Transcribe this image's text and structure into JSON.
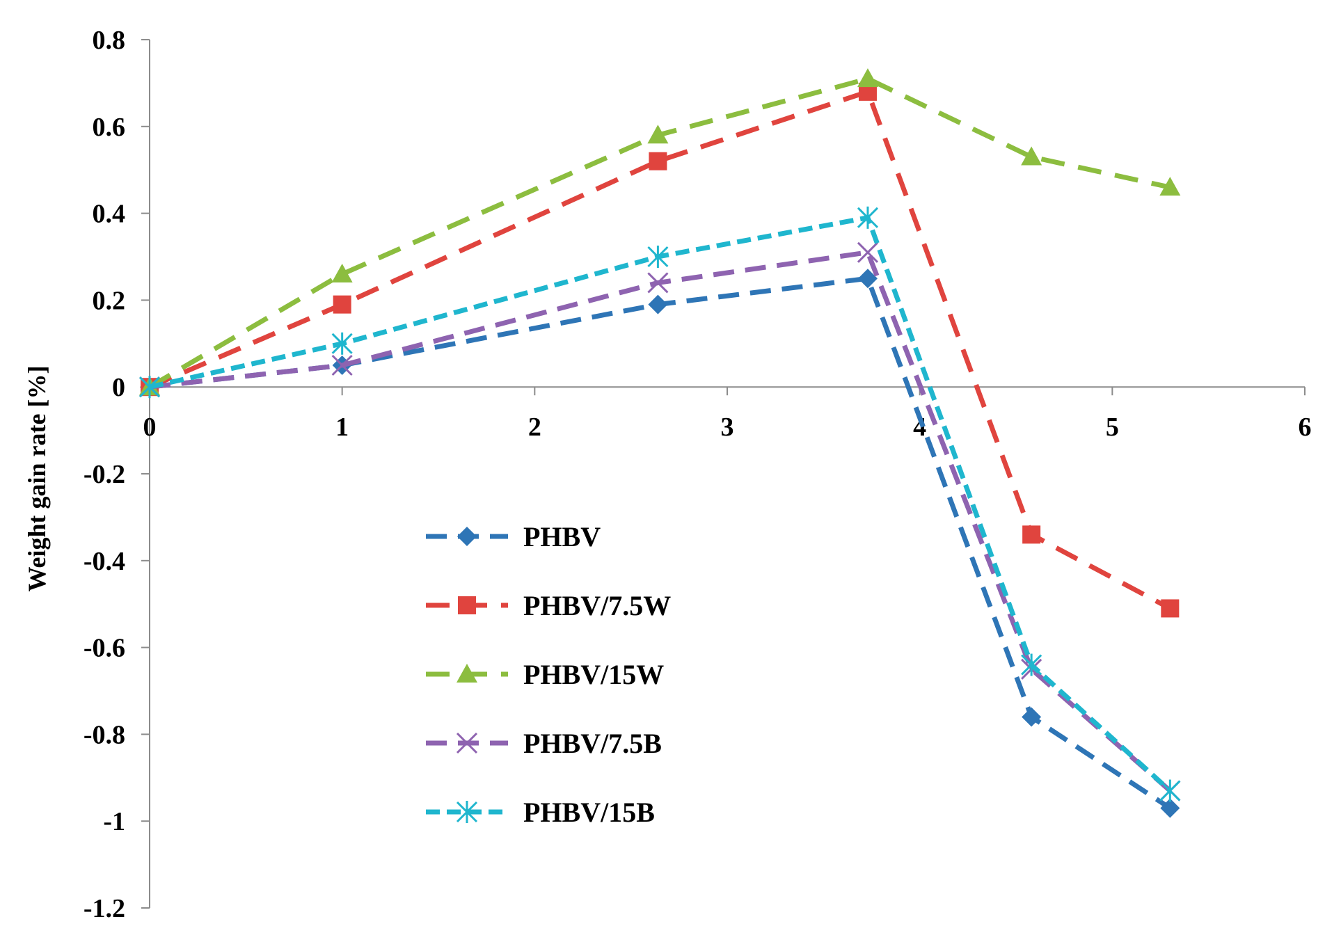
{
  "chart_data": {
    "type": "line",
    "title": "",
    "xlabel": "",
    "ylabel": "Weight gain rate [%]",
    "xlim": [
      0,
      6
    ],
    "ylim": [
      -1.2,
      0.8
    ],
    "x_ticks": [
      0,
      1,
      2,
      3,
      4,
      5,
      6
    ],
    "x_tick_labels": [
      "0",
      "1",
      "2",
      "3",
      "4",
      "5",
      "6"
    ],
    "y_ticks": [
      -1.2,
      -1,
      -0.8,
      -0.6,
      -0.4,
      -0.2,
      0,
      0.2,
      0.4,
      0.6,
      0.8
    ],
    "y_tick_labels": [
      "-1.2",
      "-1",
      "-0.8",
      "-0.6",
      "-0.4",
      "-0.2",
      "0",
      "0.2",
      "0.4",
      "0.6",
      "0.8"
    ],
    "grid": false,
    "legend_position": "center-left",
    "x": [
      0,
      1,
      2.64,
      3.73,
      4.58,
      5.3
    ],
    "series": [
      {
        "name": "PHBV",
        "marker": "diamond",
        "color": "#2e75b6",
        "values": [
          0,
          0.05,
          0.19,
          0.25,
          -0.76,
          -0.97
        ]
      },
      {
        "name": "PHBV/7.5W",
        "marker": "square",
        "color": "#e0443e",
        "values": [
          0,
          0.19,
          0.52,
          0.68,
          -0.34,
          -0.51
        ]
      },
      {
        "name": "PHBV/15W",
        "marker": "triangle",
        "color": "#8cbd3f",
        "values": [
          0,
          0.26,
          0.58,
          0.71,
          0.53,
          0.46
        ]
      },
      {
        "name": "PHBV/7.5B",
        "marker": "x",
        "color": "#8e63b0",
        "values": [
          0,
          0.05,
          0.24,
          0.31,
          -0.65,
          -0.93
        ]
      },
      {
        "name": "PHBV/15B",
        "marker": "star",
        "color": "#1fb6ce",
        "values": [
          0,
          0.1,
          0.3,
          0.39,
          -0.64,
          -0.93
        ]
      }
    ]
  }
}
